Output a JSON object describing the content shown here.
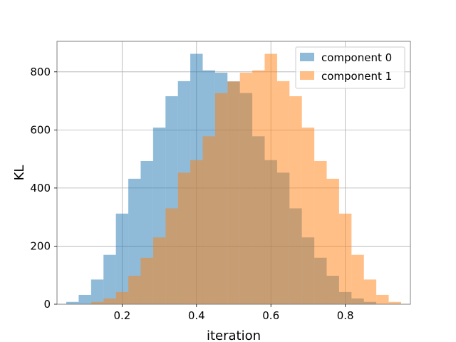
{
  "chart_data": {
    "type": "bar",
    "title": "",
    "xlabel": "iteration",
    "ylabel": "KL",
    "xlim": [
      0.025,
      0.975
    ],
    "ylim": [
      0,
      905
    ],
    "xticks": [
      0.2,
      0.4,
      0.6,
      0.8
    ],
    "xtick_labels": [
      "0.2",
      "0.4",
      "0.6",
      "0.8"
    ],
    "yticks": [
      0,
      200,
      400,
      600,
      800
    ],
    "ytick_labels": [
      "0",
      "200",
      "400",
      "600",
      "800"
    ],
    "grid": true,
    "legend_position": "top-right",
    "bin_edges": [
      0.05,
      0.0833,
      0.1167,
      0.15,
      0.1833,
      0.2167,
      0.25,
      0.2833,
      0.3167,
      0.35,
      0.3833,
      0.4167,
      0.45,
      0.4833,
      0.5167,
      0.55,
      0.5833,
      0.6167,
      0.65,
      0.6833,
      0.7167,
      0.75,
      0.7833,
      0.8167,
      0.85,
      0.8833,
      0.9167,
      0.95
    ],
    "series": [
      {
        "name": "component 0",
        "color": "#1f77b4",
        "opacity": 0.5,
        "values": [
          8,
          32,
          85,
          170,
          312,
          432,
          493,
          608,
          716,
          768,
          862,
          805,
          797,
          767,
          727,
          578,
          496,
          453,
          330,
          230,
          160,
          98,
          42,
          20,
          8,
          0,
          0
        ]
      },
      {
        "name": "component 1",
        "color": "#ff7f0e",
        "opacity": 0.5,
        "values": [
          0,
          0,
          8,
          20,
          42,
          98,
          160,
          230,
          330,
          453,
          496,
          578,
          727,
          767,
          797,
          805,
          862,
          768,
          716,
          608,
          493,
          432,
          312,
          170,
          85,
          32,
          8
        ]
      }
    ]
  }
}
